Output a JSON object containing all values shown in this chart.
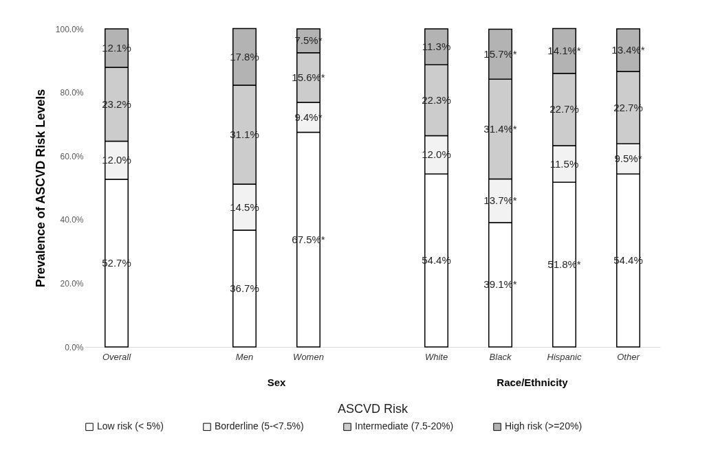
{
  "chart_data": {
    "type": "bar",
    "stacked": true,
    "categories": [
      "Overall",
      null,
      "Men",
      "Women",
      null,
      "White",
      "Black",
      "Hispanic",
      "Other"
    ],
    "ylabel": "Prevalence of ASCVD Risk Levels",
    "xlabel": "ASCVD Risk",
    "annotations": [
      "Sex",
      "Race/Ethnicity"
    ],
    "ylim": [
      0,
      100
    ],
    "yticks": [
      {
        "value": 0,
        "label": "0.0%"
      },
      {
        "value": 20,
        "label": "20.0%"
      },
      {
        "value": 40,
        "label": "40.0%"
      },
      {
        "value": 60,
        "label": "60.0%"
      },
      {
        "value": 80,
        "label": "80.0%"
      },
      {
        "value": 100,
        "label": "100.0%"
      }
    ],
    "grid": false,
    "legend": "bottom",
    "series": [
      {
        "name": "Low risk (< 5%)",
        "color": "#ffffff",
        "values": [
          52.7,
          null,
          36.7,
          67.5,
          null,
          54.4,
          39.1,
          51.8,
          54.4
        ],
        "value_labels": [
          "52.7%",
          null,
          "36.7%",
          "67.5%*",
          null,
          "54.4%",
          "39.1%*",
          "51.8%*",
          "54.4%"
        ]
      },
      {
        "name": "Borderline (5-<7.5%)",
        "color": "#f2f2f2",
        "values": [
          12.0,
          null,
          14.5,
          9.4,
          null,
          12.0,
          13.7,
          11.5,
          9.5
        ],
        "value_labels": [
          "12.0%",
          null,
          "14.5%",
          "9.4%*",
          null,
          "12.0%",
          "13.7%*",
          "11.5%",
          "9.5%*"
        ]
      },
      {
        "name": "Intermediate (7.5-20%)",
        "color": "#cccccc",
        "values": [
          23.2,
          null,
          31.1,
          15.6,
          null,
          22.3,
          31.4,
          22.7,
          22.7
        ],
        "value_labels": [
          "23.2%",
          null,
          "31.1%",
          "15.6%*",
          null,
          "22.3%",
          "31.4%*",
          "22.7%",
          "22.7%"
        ]
      },
      {
        "name": "High risk (>=20%)",
        "color": "#b3b3b3",
        "values": [
          12.1,
          null,
          17.8,
          7.5,
          null,
          11.3,
          15.7,
          14.1,
          13.4
        ],
        "value_labels": [
          "12.1%",
          null,
          "17.8%",
          "7.5%*",
          null,
          "11.3%",
          "15.7%*",
          "14.1%*",
          "13.4%*"
        ]
      }
    ]
  }
}
